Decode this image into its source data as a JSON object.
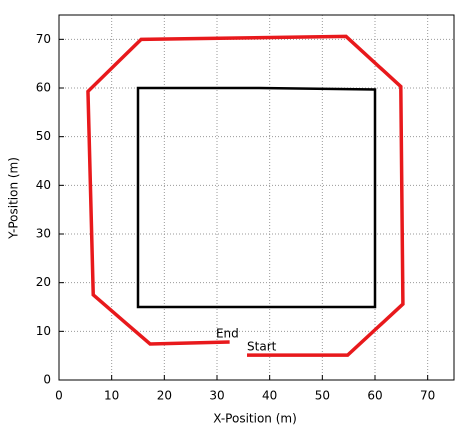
{
  "chart_data": {
    "type": "line",
    "xlabel": "X-Position (m)",
    "ylabel": "Y-Position (m)",
    "xlim": [
      0,
      75
    ],
    "ylim": [
      0,
      75
    ],
    "xticks": [
      0,
      10,
      20,
      30,
      40,
      50,
      60,
      70
    ],
    "yticks": [
      0,
      10,
      20,
      30,
      40,
      50,
      60,
      70
    ],
    "grid": true,
    "series": [
      {
        "color": "#000000",
        "x": [
          15,
          15,
          38,
          60,
          60,
          60,
          38,
          15,
          15
        ],
        "values": [
          38,
          60,
          60,
          59.7,
          38,
          15,
          15,
          15,
          38
        ]
      },
      {
        "color": "#e8191c",
        "x": [
          35.7,
          54.8,
          65.3,
          64.9,
          54.5,
          15.6,
          5.5,
          6.5,
          17.3,
          32.4
        ],
        "values": [
          5.1,
          5.1,
          15.6,
          60.3,
          70.6,
          70,
          59.3,
          17.5,
          7.4,
          7.8
        ]
      }
    ],
    "annotations": [
      {
        "text": "End",
        "x": 29.8,
        "y": 9.5
      },
      {
        "text": "Start",
        "x": 35.7,
        "y": 6.8
      }
    ]
  }
}
